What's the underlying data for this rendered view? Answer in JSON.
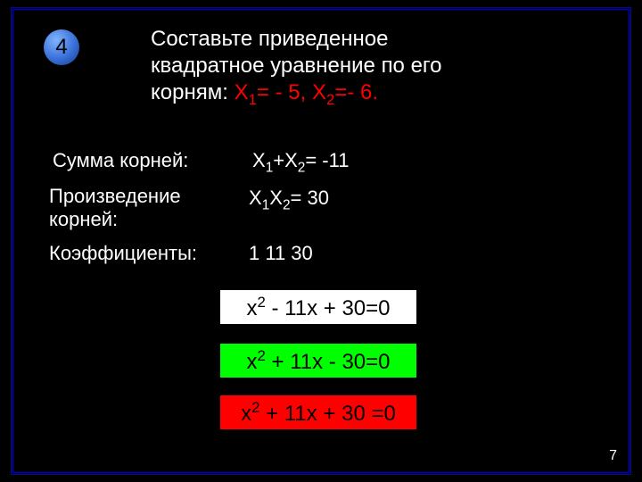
{
  "slide_number": "4",
  "page_number": "7",
  "title": {
    "line1": "Составьте приведенное",
    "line2": "квадратное уравнение   по его",
    "line3_prefix": "корням: ",
    "roots_text": "X₁= - 5,   X₂=- 6."
  },
  "rows": {
    "sum_label": "Сумма корней:",
    "sum_value": "X₁+X₂= -11",
    "prod_label": "Произведение корней:",
    "prod_value": "X₁X₂= 30",
    "coef_label": "Коэффициенты:",
    "coef_value": "1   11    30"
  },
  "equations": {
    "eq1": "x² - 11x + 30=0",
    "eq2": "x² + 11x - 30=0",
    "eq3": "x² + 11x + 30 =0"
  },
  "colors": {
    "background": "#000000",
    "frame_border": "#0000cc",
    "text": "#ffffff",
    "roots_color": "#ff0000",
    "eq1_bg": "#ffffff",
    "eq2_bg": "#00ff00",
    "eq3_bg": "#ff0000",
    "eq_text": "#000000",
    "badge_gradient_top": "#7fb4ff",
    "badge_gradient_bottom": "#143a8a"
  },
  "fonts": {
    "title_fontsize": 24,
    "row_fontsize": 22,
    "eq_fontsize": 24,
    "pagenum_fontsize": 16,
    "badge_fontsize": 24
  },
  "layout": {
    "slide_width": 720,
    "slide_height": 540
  }
}
